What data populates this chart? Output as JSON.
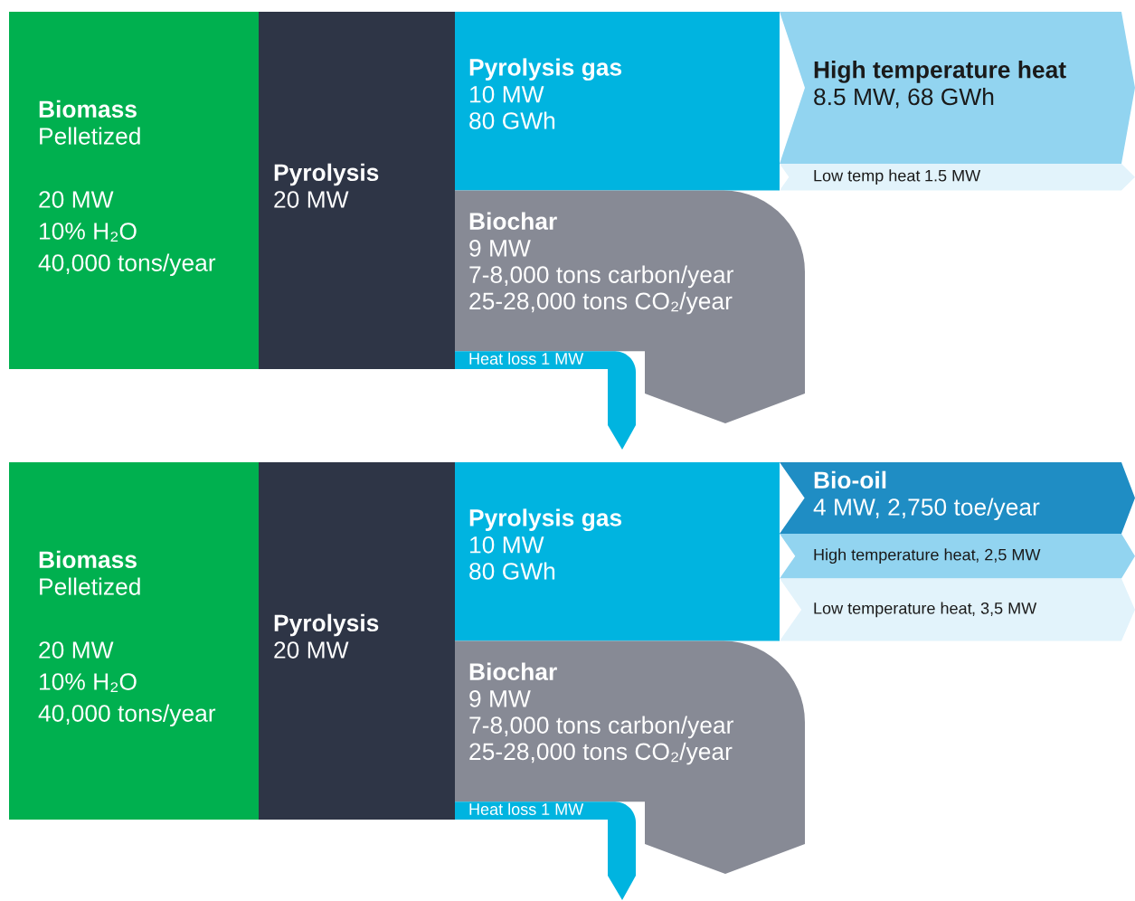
{
  "chart_data": [
    {
      "type": "other",
      "categories": [
        "Biomass",
        "Pyrolysis",
        "Pyrolysis gas",
        "Biochar",
        "Heat loss",
        "High temperature heat",
        "Low temp heat"
      ],
      "values": [
        20,
        20,
        10,
        9,
        1,
        8.5,
        1.5
      ],
      "value_labels": [
        "20 MW",
        "20 MW",
        "10 MW\n80 GWh",
        "9 MW\n7-8,000 tons carbon/year\n25-28,000 tons CO₂/year",
        "1 MW",
        "8.5 MW, 68 GWh",
        "1.5 MW"
      ],
      "annotations": [
        "Pelletized",
        "10% H₂O",
        "40,000 tons/year"
      ],
      "colors": [
        "#00b04f",
        "#2e3546",
        "#00b4e0",
        "#878a95",
        "#00b4e0",
        "#92d4f0",
        "#e2f3fb"
      ]
    },
    {
      "type": "other",
      "categories": [
        "Biomass",
        "Pyrolysis",
        "Pyrolysis gas",
        "Biochar",
        "Heat loss",
        "Bio-oil",
        "High temperature heat",
        "Low temperature heat"
      ],
      "values": [
        20,
        20,
        10,
        9,
        1,
        4,
        2.5,
        3.5
      ],
      "value_labels": [
        "20 MW",
        "20 MW",
        "10 MW\n80 GWh",
        "9 MW\n7-8,000 tons carbon/year\n25-28,000 tons CO₂/year",
        "1 MW",
        "4 MW, 2,750 toe/year",
        ", 2,5 MW",
        ", 3,5 MW"
      ],
      "annotations": [
        "Pelletized",
        "10% H₂O",
        "40,000 tons/year"
      ],
      "colors": [
        "#00b04f",
        "#2e3546",
        "#00b4e0",
        "#878a95",
        "#00b4e0",
        "#1f8dc4",
        "#92d4f0",
        "#e2f3fb"
      ]
    }
  ]
}
